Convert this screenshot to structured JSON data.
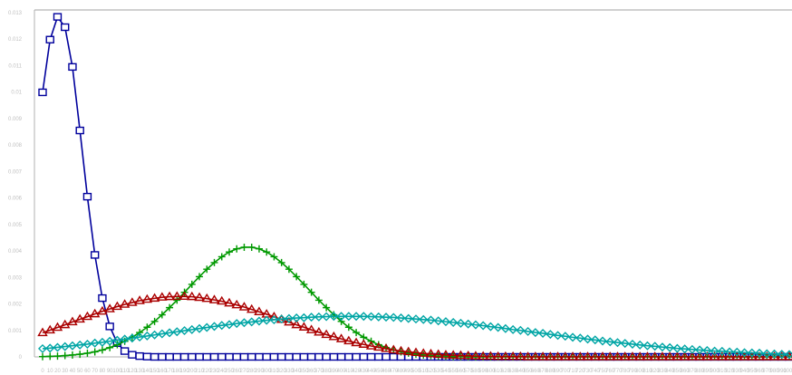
{
  "chart_data": {
    "type": "line",
    "title": "",
    "xlabel": "",
    "ylabel": "",
    "legend": "none",
    "grid": false,
    "xlim": [
      0,
      1000
    ],
    "ylim": [
      0,
      0.0131
    ],
    "y_ticks": [
      "0",
      "0.001",
      "0.002",
      "0.003",
      "0.004",
      "0.005",
      "0.006",
      "0.007",
      "0.008",
      "0.009",
      "0.01",
      "0.011",
      "0.012",
      "0.013"
    ],
    "x_ticks": [
      "0",
      "10",
      "20",
      "30",
      "40",
      "50",
      "60",
      "70",
      "80",
      "90",
      "100",
      "110",
      "120",
      "130",
      "140",
      "150",
      "160",
      "170",
      "180",
      "190",
      "200",
      "210",
      "220",
      "230",
      "240",
      "250",
      "260",
      "270",
      "280",
      "290",
      "300",
      "310",
      "320",
      "330",
      "340",
      "350",
      "360",
      "370",
      "380",
      "390",
      "400",
      "410",
      "420",
      "430",
      "440",
      "450",
      "460",
      "470",
      "480",
      "490",
      "500",
      "510",
      "520",
      "530",
      "540",
      "550",
      "560",
      "570",
      "580",
      "590",
      "600",
      "610",
      "620",
      "630",
      "640",
      "650",
      "660",
      "670",
      "680",
      "690",
      "700",
      "710",
      "720",
      "730",
      "740",
      "750",
      "760",
      "770",
      "780",
      "790",
      "800",
      "810",
      "820",
      "830",
      "840",
      "850",
      "860",
      "870",
      "880",
      "890",
      "900",
      "910",
      "920",
      "930",
      "940",
      "950",
      "960",
      "970",
      "980",
      "990",
      "1000"
    ],
    "series": [
      {
        "color": "#00009c",
        "marker": "square",
        "x": [
          0,
          10,
          20,
          30,
          40,
          50,
          60,
          70,
          80,
          90,
          100,
          110,
          120,
          130,
          140,
          150,
          160,
          170,
          180,
          190,
          200,
          210,
          220,
          230,
          240,
          250,
          260,
          270,
          280,
          290,
          300,
          310,
          320,
          330,
          340,
          350,
          360,
          370,
          380,
          390,
          400,
          410,
          420,
          430,
          440,
          450,
          460,
          470,
          480,
          490,
          500,
          510,
          520,
          530,
          540,
          550,
          560,
          570,
          580,
          590,
          600,
          610,
          620,
          630,
          640,
          650,
          660,
          670,
          680,
          690,
          700,
          710,
          720,
          730,
          740,
          750,
          760,
          770,
          780,
          790,
          800,
          810,
          820,
          830,
          840,
          850,
          860,
          870,
          880,
          890,
          900,
          910,
          920,
          930,
          940,
          950,
          960,
          970,
          980,
          990,
          1000
        ],
        "values": [
          0.00999,
          0.01198,
          0.01284,
          0.01245,
          0.01095,
          0.00855,
          0.00605,
          0.00385,
          0.00222,
          0.00115,
          0.00052,
          0.00022,
          8e-05,
          3e-05,
          1e-05,
          0,
          0,
          0,
          0,
          0,
          0,
          0,
          0,
          0,
          0,
          0,
          0,
          0,
          0,
          0,
          0,
          0,
          0,
          0,
          0,
          0,
          0,
          0,
          0,
          0,
          0,
          0,
          0,
          0,
          0,
          0,
          0,
          0,
          0,
          0,
          0,
          0,
          0,
          0,
          0,
          0,
          0,
          0,
          0,
          0,
          0,
          0,
          0,
          0,
          0,
          0,
          0,
          0,
          0,
          0,
          0,
          0,
          0,
          0,
          0,
          0,
          0,
          0,
          0,
          0,
          0,
          0,
          0,
          0,
          0,
          0,
          0,
          0,
          0,
          0,
          0,
          0,
          0,
          0,
          0,
          0,
          0,
          0,
          0,
          0,
          0
        ]
      },
      {
        "color": "#009900",
        "marker": "plus",
        "x": [
          0,
          10,
          20,
          30,
          40,
          50,
          60,
          70,
          80,
          90,
          100,
          110,
          120,
          130,
          140,
          150,
          160,
          170,
          180,
          190,
          200,
          210,
          220,
          230,
          240,
          250,
          260,
          270,
          280,
          290,
          300,
          310,
          320,
          330,
          340,
          350,
          360,
          370,
          380,
          390,
          400,
          410,
          420,
          430,
          440,
          450,
          460,
          470,
          480,
          490,
          500,
          510,
          520,
          530,
          540,
          550,
          560,
          570,
          580,
          590,
          600,
          610,
          620,
          630,
          640,
          650,
          660,
          670,
          680,
          690,
          700,
          710,
          720,
          730,
          740,
          750,
          760,
          770,
          780,
          790,
          800,
          810,
          820,
          830,
          840,
          850,
          860,
          870,
          880,
          890,
          900,
          910,
          920,
          930,
          940,
          950,
          960,
          970,
          980,
          990,
          1000
        ],
        "values": [
          1e-05,
          2e-05,
          3e-05,
          5e-05,
          7e-05,
          0.0001,
          0.00014,
          0.00019,
          0.00026,
          0.00035,
          0.00046,
          0.00059,
          0.00074,
          0.00092,
          0.00112,
          0.00134,
          0.00159,
          0.00186,
          0.00214,
          0.00244,
          0.00274,
          0.00303,
          0.00331,
          0.00356,
          0.00378,
          0.00396,
          0.00408,
          0.00414,
          0.00414,
          0.00408,
          0.00396,
          0.00378,
          0.00356,
          0.00331,
          0.00303,
          0.00274,
          0.00244,
          0.00214,
          0.00186,
          0.00159,
          0.00134,
          0.00112,
          0.00092,
          0.00074,
          0.00059,
          0.00046,
          0.00035,
          0.00026,
          0.00019,
          0.00014,
          0.0001,
          7e-05,
          5e-05,
          3e-05,
          2e-05,
          1e-05,
          1e-05,
          0,
          0,
          0,
          0,
          0,
          0,
          0,
          0,
          0,
          0,
          0,
          0,
          0,
          0,
          0,
          0,
          0,
          0,
          0,
          0,
          0,
          0,
          0,
          0,
          0,
          0,
          0,
          0,
          0,
          0,
          0,
          0,
          0,
          0,
          0,
          0,
          0,
          0,
          0,
          0,
          0,
          0,
          0,
          0
        ]
      },
      {
        "color": "#aa0000",
        "marker": "triangle",
        "x": [
          0,
          10,
          20,
          30,
          40,
          50,
          60,
          70,
          80,
          90,
          100,
          110,
          120,
          130,
          140,
          150,
          160,
          170,
          180,
          190,
          200,
          210,
          220,
          230,
          240,
          250,
          260,
          270,
          280,
          290,
          300,
          310,
          320,
          330,
          340,
          350,
          360,
          370,
          380,
          390,
          400,
          410,
          420,
          430,
          440,
          450,
          460,
          470,
          480,
          490,
          500,
          510,
          520,
          530,
          540,
          550,
          560,
          570,
          580,
          590,
          600,
          610,
          620,
          630,
          640,
          650,
          660,
          670,
          680,
          690,
          700,
          710,
          720,
          730,
          740,
          750,
          760,
          770,
          780,
          790,
          800,
          810,
          820,
          830,
          840,
          850,
          860,
          870,
          880,
          890,
          900,
          910,
          920,
          930,
          940,
          950,
          960,
          970,
          980,
          990,
          1000
        ],
        "values": [
          0.00091,
          0.00101,
          0.00111,
          0.00121,
          0.00132,
          0.00142,
          0.00152,
          0.00162,
          0.00172,
          0.00181,
          0.0019,
          0.00198,
          0.00205,
          0.00212,
          0.00217,
          0.00221,
          0.00225,
          0.00227,
          0.00228,
          0.00228,
          0.00227,
          0.00224,
          0.0022,
          0.00215,
          0.0021,
          0.00203,
          0.00196,
          0.00188,
          0.00179,
          0.0017,
          0.00161,
          0.00151,
          0.00141,
          0.00131,
          0.00121,
          0.00112,
          0.00102,
          0.00093,
          0.00084,
          0.00076,
          0.00068,
          0.0006,
          0.00053,
          0.00047,
          0.00041,
          0.00036,
          0.00031,
          0.00026,
          0.00022,
          0.00019,
          0.00016,
          0.00013,
          0.00011,
          9e-05,
          7e-05,
          6e-05,
          5e-05,
          4e-05,
          3e-05,
          2e-05,
          2e-05,
          1e-05,
          1e-05,
          1e-05,
          1e-05,
          0,
          0,
          0,
          0,
          0,
          0,
          0,
          0,
          0,
          0,
          0,
          0,
          0,
          0,
          0,
          0,
          0,
          0,
          0,
          0,
          0,
          0,
          0,
          0,
          0,
          0,
          0,
          0,
          0,
          0,
          0,
          0,
          0,
          0,
          0,
          0
        ]
      },
      {
        "color": "#00a5a5",
        "marker": "diamond",
        "x": [
          0,
          10,
          20,
          30,
          40,
          50,
          60,
          70,
          80,
          90,
          100,
          110,
          120,
          130,
          140,
          150,
          160,
          170,
          180,
          190,
          200,
          210,
          220,
          230,
          240,
          250,
          260,
          270,
          280,
          290,
          300,
          310,
          320,
          330,
          340,
          350,
          360,
          370,
          380,
          390,
          400,
          410,
          420,
          430,
          440,
          450,
          460,
          470,
          480,
          490,
          500,
          510,
          520,
          530,
          540,
          550,
          560,
          570,
          580,
          590,
          600,
          610,
          620,
          630,
          640,
          650,
          660,
          670,
          680,
          690,
          700,
          710,
          720,
          730,
          740,
          750,
          760,
          770,
          780,
          790,
          800,
          810,
          820,
          830,
          840,
          850,
          860,
          870,
          880,
          890,
          900,
          910,
          920,
          930,
          940,
          950,
          960,
          970,
          980,
          990,
          1000
        ],
        "values": [
          0.00031,
          0.00033,
          0.00036,
          0.00039,
          0.00042,
          0.00045,
          0.00048,
          0.00052,
          0.00055,
          0.00059,
          0.00063,
          0.00067,
          0.00071,
          0.00075,
          0.00079,
          0.00083,
          0.00087,
          0.00091,
          0.00095,
          0.00099,
          0.00103,
          0.00107,
          0.00111,
          0.00115,
          0.00119,
          0.00122,
          0.00126,
          0.00129,
          0.00132,
          0.00135,
          0.00138,
          0.0014,
          0.00143,
          0.00145,
          0.00147,
          0.00148,
          0.0015,
          0.00151,
          0.00152,
          0.00153,
          0.00153,
          0.00153,
          0.00153,
          0.00153,
          0.00152,
          0.00151,
          0.0015,
          0.00149,
          0.00147,
          0.00145,
          0.00143,
          0.00141,
          0.00139,
          0.00136,
          0.00133,
          0.0013,
          0.00127,
          0.00124,
          0.00121,
          0.00118,
          0.00114,
          0.00111,
          0.00107,
          0.00103,
          0.001,
          0.00096,
          0.00092,
          0.00089,
          0.00085,
          0.00081,
          0.00078,
          0.00074,
          0.00071,
          0.00067,
          0.00064,
          0.0006,
          0.00057,
          0.00054,
          0.00051,
          0.00048,
          0.00045,
          0.00042,
          0.0004,
          0.00037,
          0.00035,
          0.00032,
          0.0003,
          0.00028,
          0.00026,
          0.00024,
          0.00022,
          0.00021,
          0.00019,
          0.00018,
          0.00016,
          0.00015,
          0.00014,
          0.00012,
          0.00011,
          0.0001,
          9e-05
        ]
      }
    ]
  }
}
